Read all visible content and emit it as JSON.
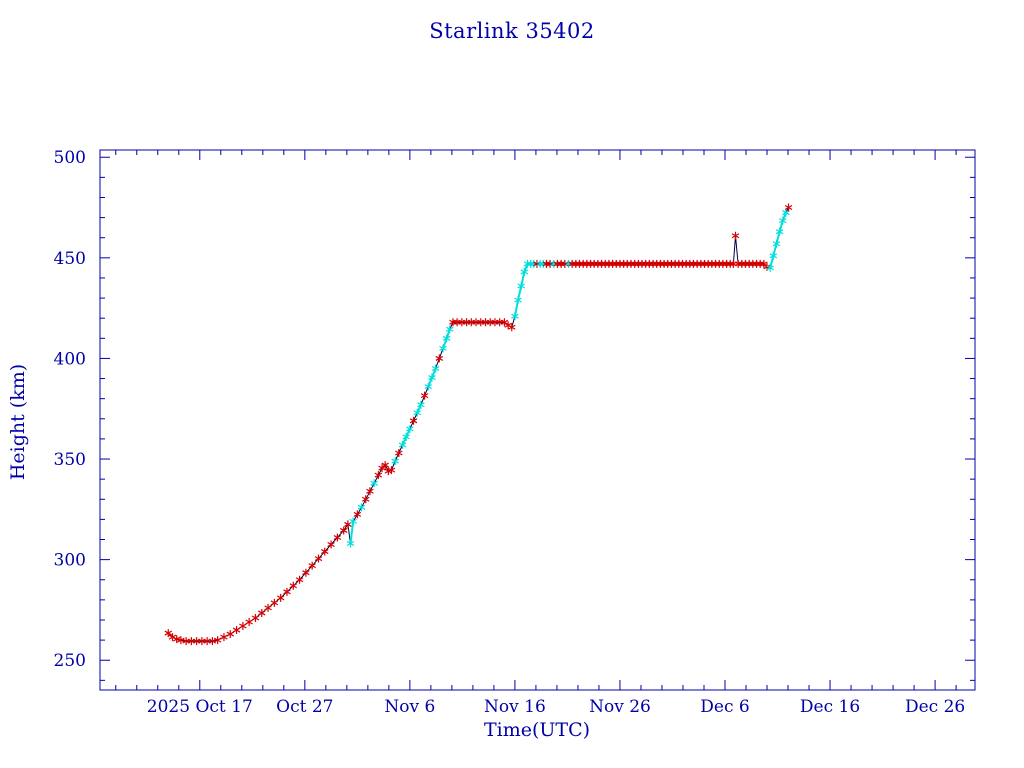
{
  "page": {
    "background": "#ffffff"
  },
  "chart_data": {
    "type": "line",
    "title": "Starlink 35402",
    "xlabel": "Time(UTC)",
    "ylabel": "Height (km)",
    "x_axis_note": "x values are days relative to 2025 Oct 17 00:00 UTC",
    "xlim": [
      -9.5,
      73.8
    ],
    "ylim": [
      235.2,
      503.6
    ],
    "y_ticks": [
      250,
      300,
      350,
      400,
      450,
      500
    ],
    "y_minor_step": 10,
    "x_ticks": [
      {
        "day": 0,
        "label": "2025 Oct 17"
      },
      {
        "day": 10,
        "label": "Oct 27"
      },
      {
        "day": 20,
        "label": "Nov 6"
      },
      {
        "day": 30,
        "label": "Nov 16"
      },
      {
        "day": 40,
        "label": "Nov 26"
      },
      {
        "day": 50,
        "label": "Dec 6"
      },
      {
        "day": 60,
        "label": "Dec 16"
      },
      {
        "day": 70,
        "label": "Dec 26"
      }
    ],
    "x_minor_step": 2,
    "grid": false,
    "legend": "none",
    "colors": {
      "axis": "#0000a8",
      "line": "#000040",
      "marker_red": "#d80000",
      "marker_cyan": "#00dede"
    },
    "marker": "asterisk",
    "series": [
      {
        "name": "height",
        "point_format": "[day, height_km, color_flag(0=red,1=cyan)]",
        "points": [
          [
            -3.0,
            263.5,
            0
          ],
          [
            -2.6,
            261.5,
            0
          ],
          [
            -2.2,
            260.5,
            0
          ],
          [
            -1.8,
            260,
            0
          ],
          [
            -1.3,
            259.5,
            0
          ],
          [
            -0.8,
            259.5,
            0
          ],
          [
            -0.3,
            259.5,
            0
          ],
          [
            0.2,
            259.5,
            0
          ],
          [
            0.7,
            259.5,
            0
          ],
          [
            1.2,
            259.5,
            0
          ],
          [
            1.7,
            260,
            0
          ],
          [
            2.3,
            261.5,
            0
          ],
          [
            2.9,
            263,
            0
          ],
          [
            3.5,
            265,
            0
          ],
          [
            4.1,
            267,
            0
          ],
          [
            4.7,
            269,
            0
          ],
          [
            5.3,
            271,
            0
          ],
          [
            5.9,
            273.5,
            0
          ],
          [
            6.5,
            276,
            0
          ],
          [
            7.1,
            278.5,
            0
          ],
          [
            7.7,
            281,
            0
          ],
          [
            8.3,
            284,
            0
          ],
          [
            8.9,
            287,
            0
          ],
          [
            9.5,
            290,
            0
          ],
          [
            10.1,
            293.5,
            0
          ],
          [
            10.7,
            297,
            0
          ],
          [
            11.3,
            300.5,
            0
          ],
          [
            11.9,
            304,
            0
          ],
          [
            12.5,
            307.5,
            0
          ],
          [
            13.1,
            311,
            0
          ],
          [
            13.7,
            314.5,
            0
          ],
          [
            14.1,
            317.5,
            0
          ],
          [
            14.35,
            308,
            1
          ],
          [
            14.6,
            319,
            1
          ],
          [
            15.0,
            322.5,
            0
          ],
          [
            15.4,
            326,
            1
          ],
          [
            15.8,
            330,
            0
          ],
          [
            16.2,
            334,
            0
          ],
          [
            16.6,
            338,
            1
          ],
          [
            17.0,
            342,
            0
          ],
          [
            17.35,
            345.5,
            0
          ],
          [
            17.65,
            347,
            0
          ],
          [
            17.95,
            344,
            0
          ],
          [
            18.25,
            344.5,
            0
          ],
          [
            18.6,
            349,
            1
          ],
          [
            18.95,
            353,
            0
          ],
          [
            19.3,
            357,
            1
          ],
          [
            19.65,
            361,
            1
          ],
          [
            20.0,
            365,
            1
          ],
          [
            20.35,
            369,
            0
          ],
          [
            20.7,
            373,
            1
          ],
          [
            21.05,
            377,
            1
          ],
          [
            21.4,
            381.5,
            0
          ],
          [
            21.75,
            386,
            1
          ],
          [
            22.1,
            390.5,
            1
          ],
          [
            22.45,
            395,
            1
          ],
          [
            22.8,
            400,
            0
          ],
          [
            23.15,
            405,
            1
          ],
          [
            23.5,
            410,
            1
          ],
          [
            23.8,
            414.5,
            1
          ],
          [
            24.1,
            418,
            0
          ],
          [
            24.5,
            418,
            0
          ],
          [
            24.95,
            418,
            0
          ],
          [
            25.4,
            418,
            0
          ],
          [
            25.85,
            418,
            0
          ],
          [
            26.3,
            418,
            0
          ],
          [
            26.75,
            418,
            0
          ],
          [
            27.2,
            418,
            0
          ],
          [
            27.65,
            418,
            0
          ],
          [
            28.1,
            418,
            0
          ],
          [
            28.55,
            418,
            0
          ],
          [
            29.0,
            418,
            0
          ],
          [
            29.35,
            416.5,
            0
          ],
          [
            29.7,
            415.5,
            0
          ],
          [
            30.0,
            421,
            1
          ],
          [
            30.3,
            429,
            1
          ],
          [
            30.6,
            436,
            1
          ],
          [
            30.9,
            443,
            1
          ],
          [
            31.2,
            447,
            1
          ],
          [
            31.5,
            447,
            1
          ],
          [
            31.8,
            447,
            1
          ],
          [
            32.1,
            447,
            0
          ],
          [
            32.4,
            447,
            1
          ],
          [
            32.7,
            447,
            1
          ],
          [
            33.0,
            447,
            0
          ],
          [
            33.35,
            447,
            0
          ],
          [
            33.7,
            447,
            1
          ],
          [
            34.05,
            447,
            0
          ],
          [
            34.4,
            447,
            0
          ],
          [
            34.75,
            447,
            0
          ],
          [
            35.1,
            447,
            1
          ],
          [
            35.45,
            447,
            0
          ],
          [
            35.8,
            447,
            0
          ],
          [
            36.15,
            447,
            0
          ],
          [
            36.5,
            447,
            0
          ],
          [
            36.85,
            447,
            0
          ],
          [
            37.2,
            447,
            0
          ],
          [
            37.55,
            447,
            0
          ],
          [
            37.9,
            447,
            0
          ],
          [
            38.25,
            447,
            0
          ],
          [
            38.6,
            447,
            0
          ],
          [
            38.95,
            447,
            0
          ],
          [
            39.3,
            447,
            0
          ],
          [
            39.65,
            447,
            0
          ],
          [
            40.0,
            447,
            0
          ],
          [
            40.35,
            447,
            0
          ],
          [
            40.7,
            447,
            0
          ],
          [
            41.05,
            447,
            0
          ],
          [
            41.4,
            447,
            0
          ],
          [
            41.75,
            447,
            0
          ],
          [
            42.1,
            447,
            0
          ],
          [
            42.45,
            447,
            0
          ],
          [
            42.8,
            447,
            0
          ],
          [
            43.15,
            447,
            0
          ],
          [
            43.5,
            447,
            0
          ],
          [
            43.85,
            447,
            0
          ],
          [
            44.2,
            447,
            0
          ],
          [
            44.55,
            447,
            0
          ],
          [
            44.9,
            447,
            0
          ],
          [
            45.25,
            447,
            0
          ],
          [
            45.6,
            447,
            0
          ],
          [
            45.95,
            447,
            0
          ],
          [
            46.3,
            447,
            0
          ],
          [
            46.65,
            447,
            0
          ],
          [
            47.0,
            447,
            0
          ],
          [
            47.35,
            447,
            0
          ],
          [
            47.7,
            447,
            0
          ],
          [
            48.05,
            447,
            0
          ],
          [
            48.4,
            447,
            0
          ],
          [
            48.75,
            447,
            0
          ],
          [
            49.1,
            447,
            0
          ],
          [
            49.45,
            447,
            0
          ],
          [
            49.8,
            447,
            0
          ],
          [
            50.15,
            447,
            0
          ],
          [
            50.5,
            447,
            0
          ],
          [
            50.8,
            447,
            0
          ],
          [
            51.0,
            461,
            0
          ],
          [
            51.25,
            447,
            0
          ],
          [
            51.6,
            447,
            0
          ],
          [
            51.95,
            447,
            0
          ],
          [
            52.3,
            447,
            0
          ],
          [
            52.65,
            447,
            0
          ],
          [
            53.0,
            447,
            0
          ],
          [
            53.35,
            447,
            0
          ],
          [
            53.7,
            447,
            0
          ],
          [
            54.0,
            445.5,
            0
          ],
          [
            54.3,
            445,
            1
          ],
          [
            54.6,
            451,
            1
          ],
          [
            54.9,
            457,
            1
          ],
          [
            55.2,
            463,
            1
          ],
          [
            55.5,
            468.5,
            1
          ],
          [
            55.8,
            472.5,
            1
          ],
          [
            56.05,
            475,
            0
          ]
        ]
      }
    ]
  }
}
